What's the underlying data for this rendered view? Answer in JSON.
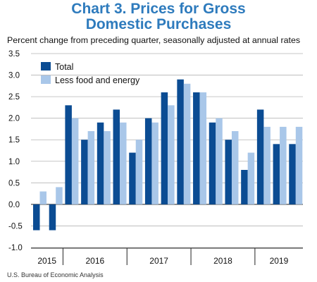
{
  "chart_data": {
    "type": "bar",
    "title": "Chart 3. Prices for Gross Domestic Purchases",
    "title_lines": [
      "Chart 3. Prices for Gross",
      "Domestic Purchases"
    ],
    "subtitle": "Percent change from preceding quarter, seasonally adjusted at annual rates",
    "source": "U.S. Bureau of Economic Analysis",
    "xlabel": "",
    "ylabel": "",
    "ylim": [
      -1.0,
      3.5
    ],
    "yticks": [
      -1.0,
      -0.5,
      0.0,
      0.5,
      1.0,
      1.5,
      2.0,
      2.5,
      3.0,
      3.5
    ],
    "ytick_labels": [
      "-1.0",
      "-0.5",
      "0.0",
      "0.5",
      "1.0",
      "1.5",
      "2.0",
      "2.5",
      "3.0",
      "3.5"
    ],
    "grid": true,
    "legend_position": "top-left",
    "colors": {
      "total": "#0b4c93",
      "less_food_energy": "#a9c7e9",
      "title": "#2e7bbd",
      "grid": "#b5b5b5"
    },
    "categories": [
      "2015 Q3",
      "2015 Q4",
      "2016 Q1",
      "2016 Q2",
      "2016 Q3",
      "2016 Q4",
      "2017 Q1",
      "2017 Q2",
      "2017 Q3",
      "2017 Q4",
      "2018 Q1",
      "2018 Q2",
      "2018 Q3",
      "2018 Q4",
      "2019 Q1",
      "2019 Q2",
      "2019 Q3"
    ],
    "year_groups": [
      {
        "label": "2015",
        "quarters": 2
      },
      {
        "label": "2016",
        "quarters": 4
      },
      {
        "label": "2017",
        "quarters": 4
      },
      {
        "label": "2018",
        "quarters": 4
      },
      {
        "label": "2019",
        "quarters": 3
      }
    ],
    "series": [
      {
        "name": "Total",
        "values": [
          -0.6,
          -0.6,
          2.3,
          1.5,
          1.9,
          2.2,
          1.2,
          2.0,
          2.6,
          2.9,
          2.6,
          1.9,
          1.5,
          0.8,
          2.2,
          1.4,
          1.4
        ]
      },
      {
        "name": "Less food and energy",
        "values": [
          0.3,
          0.4,
          2.0,
          1.7,
          1.7,
          1.9,
          1.5,
          1.9,
          2.3,
          2.8,
          2.6,
          2.0,
          1.7,
          1.2,
          1.8,
          1.8,
          1.8
        ]
      }
    ]
  }
}
